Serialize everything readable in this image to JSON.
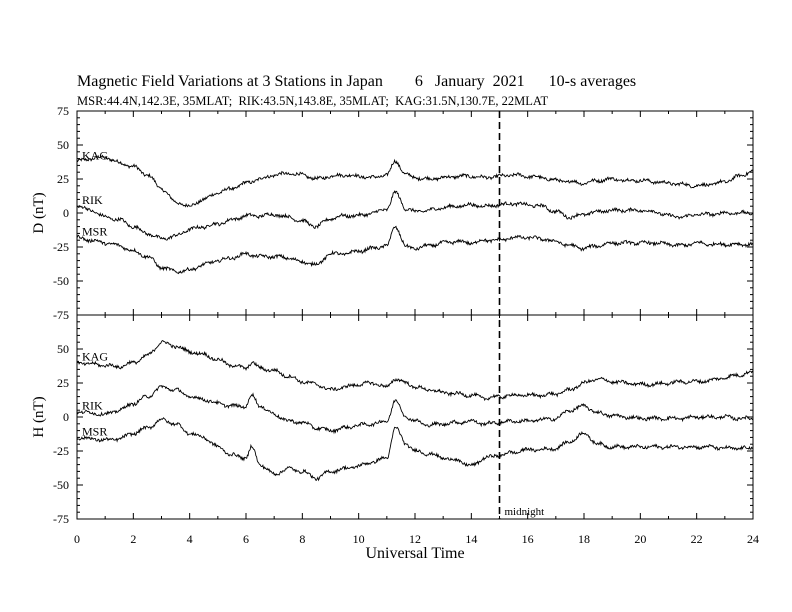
{
  "title": "Magnetic Field Variations at 3 Stations in Japan        6   January  2021      10-s averages",
  "subtitle": "MSR:44.4N,142.3E, 35MLAT;  RIK:43.5N,143.8E, 35MLAT;  KAG:31.5N,130.7E, 22MLAT",
  "chart_data": [
    {
      "type": "line",
      "ylabel": "D (nT)",
      "xlabel": "",
      "xlim": [
        0,
        24
      ],
      "ylim": [
        -75,
        75
      ],
      "yticks": [
        75,
        50,
        25,
        0,
        -25,
        -50,
        -75
      ],
      "xticks": [],
      "series": [
        {
          "name": "KAG",
          "x": [
            0,
            0.5,
            1,
            1.5,
            2,
            2.5,
            3,
            3.5,
            4,
            4.5,
            5,
            5.5,
            6,
            6.5,
            7,
            7.5,
            8,
            8.5,
            9,
            9.5,
            10,
            10.5,
            11,
            11.3,
            11.7,
            12,
            12.5,
            13,
            13.5,
            14,
            14.5,
            15,
            15.5,
            16,
            16.5,
            17,
            17.5,
            18,
            18.5,
            19,
            19.5,
            20,
            20.5,
            21,
            21.5,
            22,
            22.5,
            23,
            23.5,
            24
          ],
          "y": [
            38,
            40,
            41,
            37,
            34,
            28,
            18,
            8,
            5,
            10,
            15,
            18,
            22,
            25,
            28,
            29,
            28,
            25,
            27,
            28,
            27,
            26,
            28,
            38,
            28,
            26,
            25,
            26,
            27,
            27,
            26,
            27,
            28,
            27,
            26,
            24,
            23,
            22,
            24,
            25,
            24,
            24,
            23,
            22,
            21,
            20,
            21,
            23,
            27,
            31
          ]
        },
        {
          "name": "RIK",
          "x": [
            0,
            0.5,
            1,
            1.5,
            2,
            2.5,
            3,
            3.5,
            4,
            4.5,
            5,
            5.5,
            6,
            6.5,
            7,
            7.5,
            8,
            8.5,
            9,
            9.5,
            10,
            10.5,
            11,
            11.3,
            11.7,
            12,
            12.5,
            13,
            13.5,
            14,
            14.5,
            15,
            15.5,
            16,
            16.5,
            17,
            17.5,
            18,
            18.5,
            19,
            19.5,
            20,
            20.5,
            21,
            21.5,
            22,
            22.5,
            23,
            23.5,
            24
          ],
          "y": [
            5,
            2,
            -3,
            -5,
            -10,
            -15,
            -19,
            -17,
            -12,
            -10,
            -8,
            -5,
            -2,
            -2,
            -1,
            -3,
            -6,
            -10,
            -4,
            -2,
            -2,
            0,
            3,
            15,
            3,
            1,
            2,
            4,
            5,
            6,
            5,
            6,
            7,
            6,
            5,
            1,
            -3,
            -1,
            1,
            2,
            2,
            2,
            1,
            -2,
            -3,
            -1,
            -1,
            0,
            0,
            0
          ]
        },
        {
          "name": "MSR",
          "x": [
            0,
            0.5,
            1,
            1.5,
            2,
            2.5,
            3,
            3.5,
            4,
            4.5,
            5,
            5.5,
            6,
            6.5,
            7,
            7.5,
            8,
            8.5,
            9,
            9.5,
            10,
            10.5,
            11,
            11.3,
            11.7,
            12,
            12.5,
            13,
            13.5,
            14,
            14.5,
            15,
            15.5,
            16,
            16.5,
            17,
            17.5,
            18,
            18.5,
            19,
            19.5,
            20,
            20.5,
            21,
            21.5,
            22,
            22.5,
            23,
            23.5,
            24
          ],
          "y": [
            -18,
            -20,
            -22,
            -24,
            -28,
            -32,
            -40,
            -43,
            -42,
            -38,
            -35,
            -33,
            -30,
            -32,
            -32,
            -33,
            -36,
            -38,
            -30,
            -30,
            -28,
            -26,
            -24,
            -10,
            -25,
            -26,
            -24,
            -22,
            -21,
            -22,
            -20,
            -20,
            -18,
            -18,
            -19,
            -21,
            -24,
            -26,
            -24,
            -22,
            -22,
            -22,
            -22,
            -23,
            -24,
            -22,
            -23,
            -23,
            -23,
            -23
          ]
        }
      ]
    },
    {
      "type": "line",
      "ylabel": "H (nT)",
      "xlabel": "Universal Time",
      "xlim": [
        0,
        24
      ],
      "ylim": [
        -75,
        75
      ],
      "yticks": [
        75,
        50,
        25,
        0,
        -25,
        -50,
        -75
      ],
      "xticks": [
        0,
        2,
        4,
        6,
        8,
        10,
        12,
        14,
        16,
        18,
        20,
        22,
        24
      ],
      "annotation": {
        "x": 15,
        "text": "midnight"
      },
      "series": [
        {
          "name": "KAG",
          "x": [
            0,
            0.5,
            1,
            1.5,
            2,
            2.5,
            3,
            3.5,
            4,
            4.5,
            5,
            5.5,
            6,
            6.2,
            6.5,
            7,
            7.5,
            8,
            8.5,
            9,
            9.5,
            10,
            10.5,
            11,
            11.3,
            11.7,
            12,
            12.5,
            13,
            13.5,
            14,
            14.5,
            15,
            15.5,
            16,
            16.5,
            17,
            17.5,
            18,
            18.5,
            19,
            19.5,
            20,
            20.5,
            21,
            21.5,
            22,
            22.5,
            23,
            23.5,
            24
          ],
          "y": [
            40,
            39,
            38,
            37,
            40,
            45,
            55,
            52,
            48,
            46,
            42,
            38,
            36,
            40,
            36,
            34,
            30,
            26,
            24,
            20,
            22,
            24,
            25,
            22,
            28,
            25,
            22,
            20,
            18,
            17,
            16,
            14,
            15,
            16,
            16,
            16,
            17,
            20,
            25,
            28,
            26,
            25,
            24,
            24,
            25,
            26,
            26,
            27,
            29,
            31,
            33
          ]
        },
        {
          "name": "RIK",
          "x": [
            0,
            0.5,
            1,
            1.5,
            2,
            2.5,
            3,
            3.5,
            4,
            4.5,
            5,
            5.5,
            6,
            6.2,
            6.5,
            7,
            7.5,
            8,
            8.5,
            9,
            9.5,
            10,
            10.5,
            11,
            11.3,
            11.7,
            12,
            12.5,
            13,
            13.5,
            14,
            14.5,
            15,
            15.5,
            16,
            16.5,
            17,
            17.5,
            18,
            18.5,
            19,
            19.5,
            20,
            20.5,
            21,
            21.5,
            22,
            22.5,
            23,
            23.5,
            24
          ],
          "y": [
            4,
            3,
            2,
            5,
            10,
            15,
            22,
            20,
            15,
            13,
            10,
            8,
            8,
            16,
            8,
            2,
            -3,
            -4,
            -8,
            -10,
            -8,
            -6,
            -5,
            -3,
            12,
            0,
            -3,
            -6,
            -5,
            -4,
            -3,
            -5,
            -4,
            -3,
            -3,
            -2,
            -1,
            5,
            8,
            3,
            1,
            0,
            -1,
            -1,
            -1,
            -1,
            0,
            0,
            0,
            -1,
            -1
          ]
        },
        {
          "name": "MSR",
          "x": [
            0,
            0.5,
            1,
            1.5,
            2,
            2.5,
            3,
            3.5,
            4,
            4.5,
            5,
            5.5,
            6,
            6.2,
            6.5,
            7,
            7.5,
            8,
            8.5,
            9,
            9.5,
            10,
            10.5,
            11,
            11.3,
            11.7,
            12,
            12.5,
            13,
            13.5,
            14,
            14.5,
            15,
            15.5,
            16,
            16.5,
            17,
            17.5,
            18,
            18.5,
            19,
            19.5,
            20,
            20.5,
            21,
            21.5,
            22,
            22.5,
            23,
            23.5,
            24
          ],
          "y": [
            -15,
            -16,
            -17,
            -16,
            -12,
            -8,
            -2,
            -5,
            -12,
            -15,
            -22,
            -28,
            -30,
            -22,
            -35,
            -42,
            -38,
            -40,
            -45,
            -40,
            -38,
            -36,
            -33,
            -30,
            -8,
            -20,
            -25,
            -27,
            -30,
            -32,
            -36,
            -30,
            -28,
            -26,
            -24,
            -24,
            -23,
            -18,
            -12,
            -20,
            -22,
            -22,
            -22,
            -22,
            -22,
            -22,
            -22,
            -22,
            -23,
            -23,
            -23
          ]
        }
      ]
    }
  ]
}
